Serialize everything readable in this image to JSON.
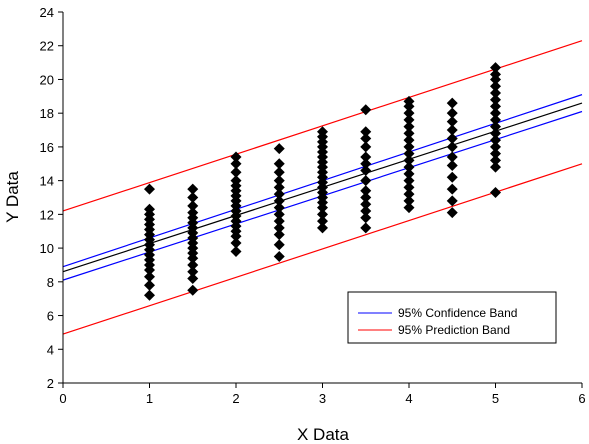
{
  "chart_data": {
    "type": "scatter",
    "xlabel": "X Data",
    "ylabel": "Y Data",
    "xlim": [
      0,
      6
    ],
    "ylim": [
      2,
      24
    ],
    "xticks": [
      "0",
      "1",
      "2",
      "3",
      "4",
      "5",
      "6"
    ],
    "yticks": [
      "2",
      "4",
      "6",
      "8",
      "10",
      "12",
      "14",
      "16",
      "18",
      "20",
      "22",
      "24"
    ],
    "grid": false,
    "legend_position": "bottom-right",
    "points": {
      "color": "#000000",
      "marker": "diamond",
      "groups": [
        {
          "x": 1,
          "y": [
            7.2,
            7.8,
            8.3,
            8.7,
            9.0,
            9.3,
            9.6,
            9.9,
            10.2,
            10.5,
            10.8,
            11.1,
            11.4,
            11.7,
            12.0,
            12.3,
            13.5
          ]
        },
        {
          "x": 1.5,
          "y": [
            7.5,
            8.2,
            8.6,
            9.0,
            9.4,
            9.7,
            10.0,
            10.3,
            10.6,
            10.9,
            11.2,
            11.5,
            11.8,
            12.1,
            12.5,
            13.0,
            13.5
          ]
        },
        {
          "x": 2,
          "y": [
            9.8,
            10.3,
            10.7,
            11.0,
            11.3,
            11.6,
            11.9,
            12.2,
            12.5,
            12.8,
            13.1,
            13.4,
            13.7,
            14.0,
            14.5,
            15.0,
            15.4
          ]
        },
        {
          "x": 2.5,
          "y": [
            9.5,
            10.2,
            10.8,
            11.2,
            11.6,
            12.0,
            12.4,
            12.8,
            13.2,
            13.6,
            14.0,
            14.5,
            15.0,
            15.9
          ]
        },
        {
          "x": 3,
          "y": [
            11.2,
            11.6,
            12.0,
            12.4,
            12.7,
            13.0,
            13.3,
            13.6,
            13.9,
            14.2,
            14.5,
            14.8,
            15.1,
            15.4,
            15.7,
            16.0,
            16.3,
            16.6,
            16.9
          ]
        },
        {
          "x": 3.5,
          "y": [
            11.2,
            11.8,
            12.2,
            12.6,
            13.0,
            13.4,
            14.0,
            14.6,
            15.0,
            15.4,
            16.0,
            16.5,
            16.9,
            18.2
          ]
        },
        {
          "x": 4,
          "y": [
            12.4,
            12.8,
            13.2,
            13.6,
            14.0,
            14.4,
            14.8,
            15.2,
            15.6,
            16.0,
            16.4,
            16.8,
            17.2,
            17.6,
            18.0,
            18.4,
            18.7
          ]
        },
        {
          "x": 4.5,
          "y": [
            12.1,
            12.8,
            13.5,
            14.2,
            14.9,
            15.4,
            16.0,
            16.5,
            17.0,
            17.5,
            18.0,
            18.6
          ]
        },
        {
          "x": 5,
          "y": [
            13.3,
            14.8,
            15.2,
            15.6,
            16.0,
            16.4,
            16.8,
            17.2,
            17.6,
            18.0,
            18.4,
            18.8,
            19.2,
            19.6,
            20.0,
            20.3,
            20.7
          ]
        }
      ]
    },
    "lines": [
      {
        "name": "",
        "color": "#000000",
        "x": [
          0,
          6
        ],
        "y": [
          8.6,
          18.6
        ]
      },
      {
        "name": "95% Confidence Band",
        "color": "#0000ff",
        "x": [
          0,
          6
        ],
        "y": [
          8.9,
          19.1
        ]
      },
      {
        "name": "",
        "color": "#0000ff",
        "x": [
          0,
          6
        ],
        "y": [
          8.1,
          18.1
        ]
      },
      {
        "name": "95% Prediction Band",
        "color": "#ff0000",
        "x": [
          0,
          6
        ],
        "y": [
          12.2,
          22.3
        ]
      },
      {
        "name": "",
        "color": "#ff0000",
        "x": [
          0,
          6
        ],
        "y": [
          4.9,
          15.0
        ]
      }
    ],
    "legend": [
      {
        "label": "95% Confidence Band",
        "color": "#0000ff"
      },
      {
        "label": "95% Prediction Band",
        "color": "#ff0000"
      }
    ]
  }
}
